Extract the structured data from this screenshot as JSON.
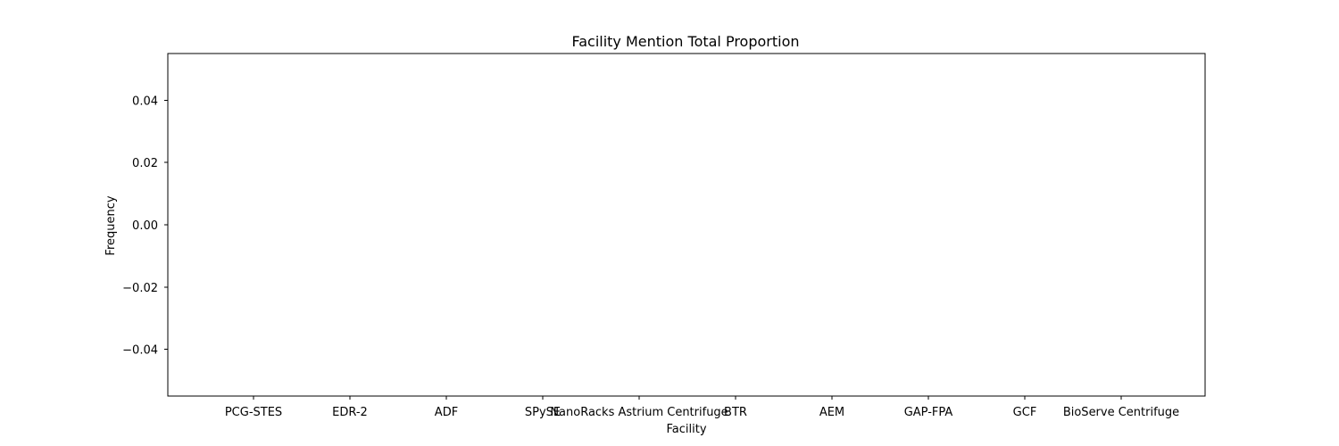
{
  "chart_data": {
    "type": "bar",
    "title": "Facility Mention Total Proportion",
    "xlabel": "Facility",
    "ylabel": "Frequency",
    "categories": [
      "PCG-STES",
      "EDR-2",
      "ADF",
      "SPySE",
      "NanoRacks Astrium Centrifuge",
      "BTR",
      "AEM",
      "GAP-FPA",
      "GCF",
      "BioServe Centrifuge"
    ],
    "values": [
      0,
      0,
      0,
      0,
      0,
      0,
      0,
      0,
      0,
      0
    ],
    "ylim": [
      -0.055,
      0.055
    ],
    "yticks": [
      0.04,
      0.02,
      0.0,
      -0.02,
      -0.04
    ],
    "ytick_labels": [
      "0.04",
      "0.02",
      "0.00",
      "−0.02",
      "−0.04"
    ],
    "grid": false,
    "colors": {
      "bar": "#1f77b4",
      "axis": "#000000",
      "background": "#ffffff"
    }
  }
}
